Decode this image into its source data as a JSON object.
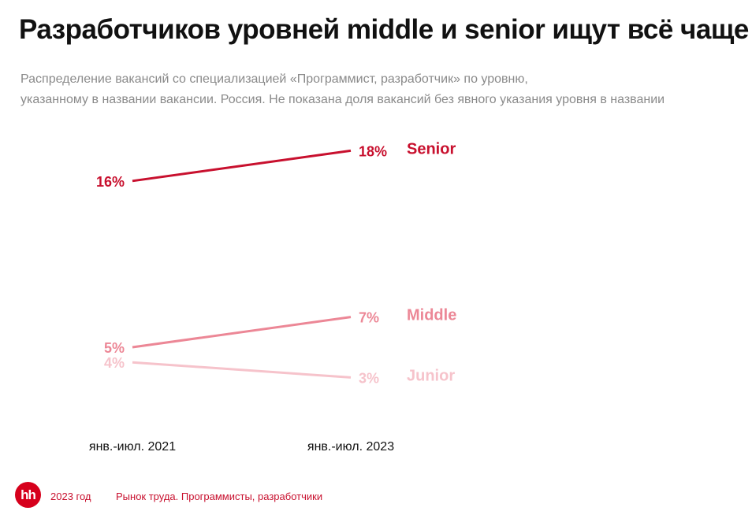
{
  "title": "Разработчиков уровней middle и senior ищут всё чаще",
  "subtitle": [
    "Распределение вакансий со специализацией «Программист, разработчик» по уровню,",
    "указанному в названии вакансии. Россия. Не показана доля вакансий без явного указания уровня в названии"
  ],
  "footer": {
    "logo": "hh",
    "year": "2023 год",
    "source": "Рынок труда. Программисты, разработчики"
  },
  "chart_data": {
    "type": "line",
    "title": "Разработчиков уровней middle и senior ищут всё чаще",
    "categories": [
      "янв.-июл. 2021",
      "янв.-июл. 2023"
    ],
    "unit": "%",
    "series": [
      {
        "name": "Senior",
        "values": [
          16,
          18
        ],
        "color": "#c8102e"
      },
      {
        "name": "Middle",
        "values": [
          5,
          7
        ],
        "color": "#ec8796"
      },
      {
        "name": "Junior",
        "values": [
          4,
          3
        ],
        "color": "#f6c3cb"
      }
    ]
  }
}
